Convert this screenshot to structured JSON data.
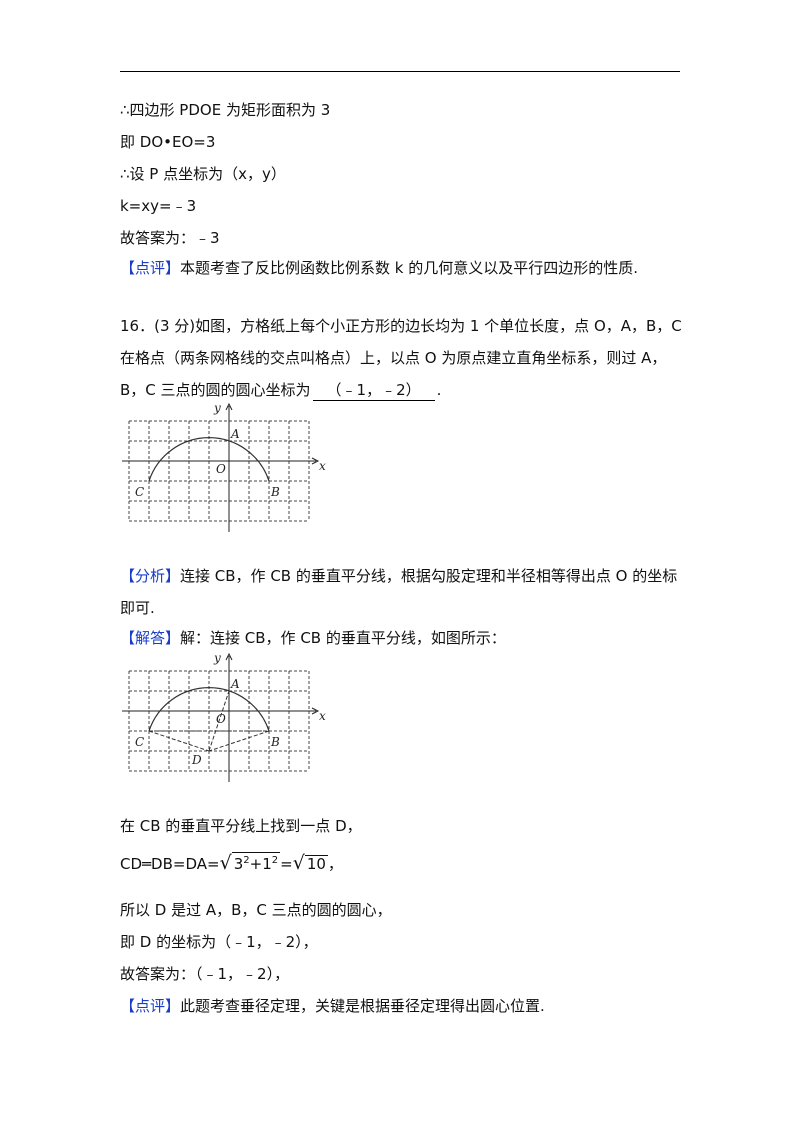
{
  "top": {
    "l1": "∴四边形 PDOE 为矩形面积为 3",
    "l2": "即 DO•EO=3",
    "l3": "∴设 P 点坐标为（x，y）",
    "l4": "k=xy=﹣3",
    "l5": "故答案为：﹣3",
    "review_tag": "【点评】",
    "review_text": "本题考查了反比例函数比例系数 k 的几何意义以及平行四边形的性质."
  },
  "problem": {
    "l1": "16．(3 分)如图，方格纸上每个小正方形的边长均为 1 个单位长度，点 O，A，B，C",
    "l2": "在格点（两条网格线的交点叫格点）上，以点 O 为原点建立直角坐标系，则过 A，",
    "l3_pre": "B，C 三点的圆的圆心坐标为",
    "answer": "（﹣1，﹣2）",
    "l3_post": "."
  },
  "figure1": {
    "y": "y",
    "x": "x",
    "o": "O",
    "a": "A",
    "b": "B",
    "c": "C"
  },
  "analysis": {
    "tag": "【分析】",
    "l1": "连接 CB，作 CB 的垂直平分线，根据勾股定理和半径相等得出点 O 的坐标",
    "l2": "即可."
  },
  "solution": {
    "tag": "【解答】",
    "text": "解：连接 CB，作 CB 的垂直平分线，如图所示："
  },
  "figure2": {
    "y": "y",
    "x": "x",
    "o": "O",
    "a": "A",
    "b": "B",
    "c": "C",
    "d": "D"
  },
  "sol": {
    "l1": "在 CB 的垂直平分线上找到一点 D，",
    "eq_pre": "CD═DB=DA=",
    "r1_a": "3",
    "r1_e1": "2",
    "r1_plus": "+",
    "r1_b": "1",
    "r1_e2": "2",
    "eq_mid": "=",
    "r2": "10",
    "eq_post": "，",
    "l3": "所以 D 是过 A，B，C 三点的圆的圆心，",
    "l4": "即 D 的坐标为（﹣1，﹣2），",
    "l5": "故答案为：（﹣1，﹣2），"
  },
  "review2": {
    "tag": "【点评】",
    "text": "此题考查垂径定理，关键是根据垂径定理得出圆心位置."
  }
}
